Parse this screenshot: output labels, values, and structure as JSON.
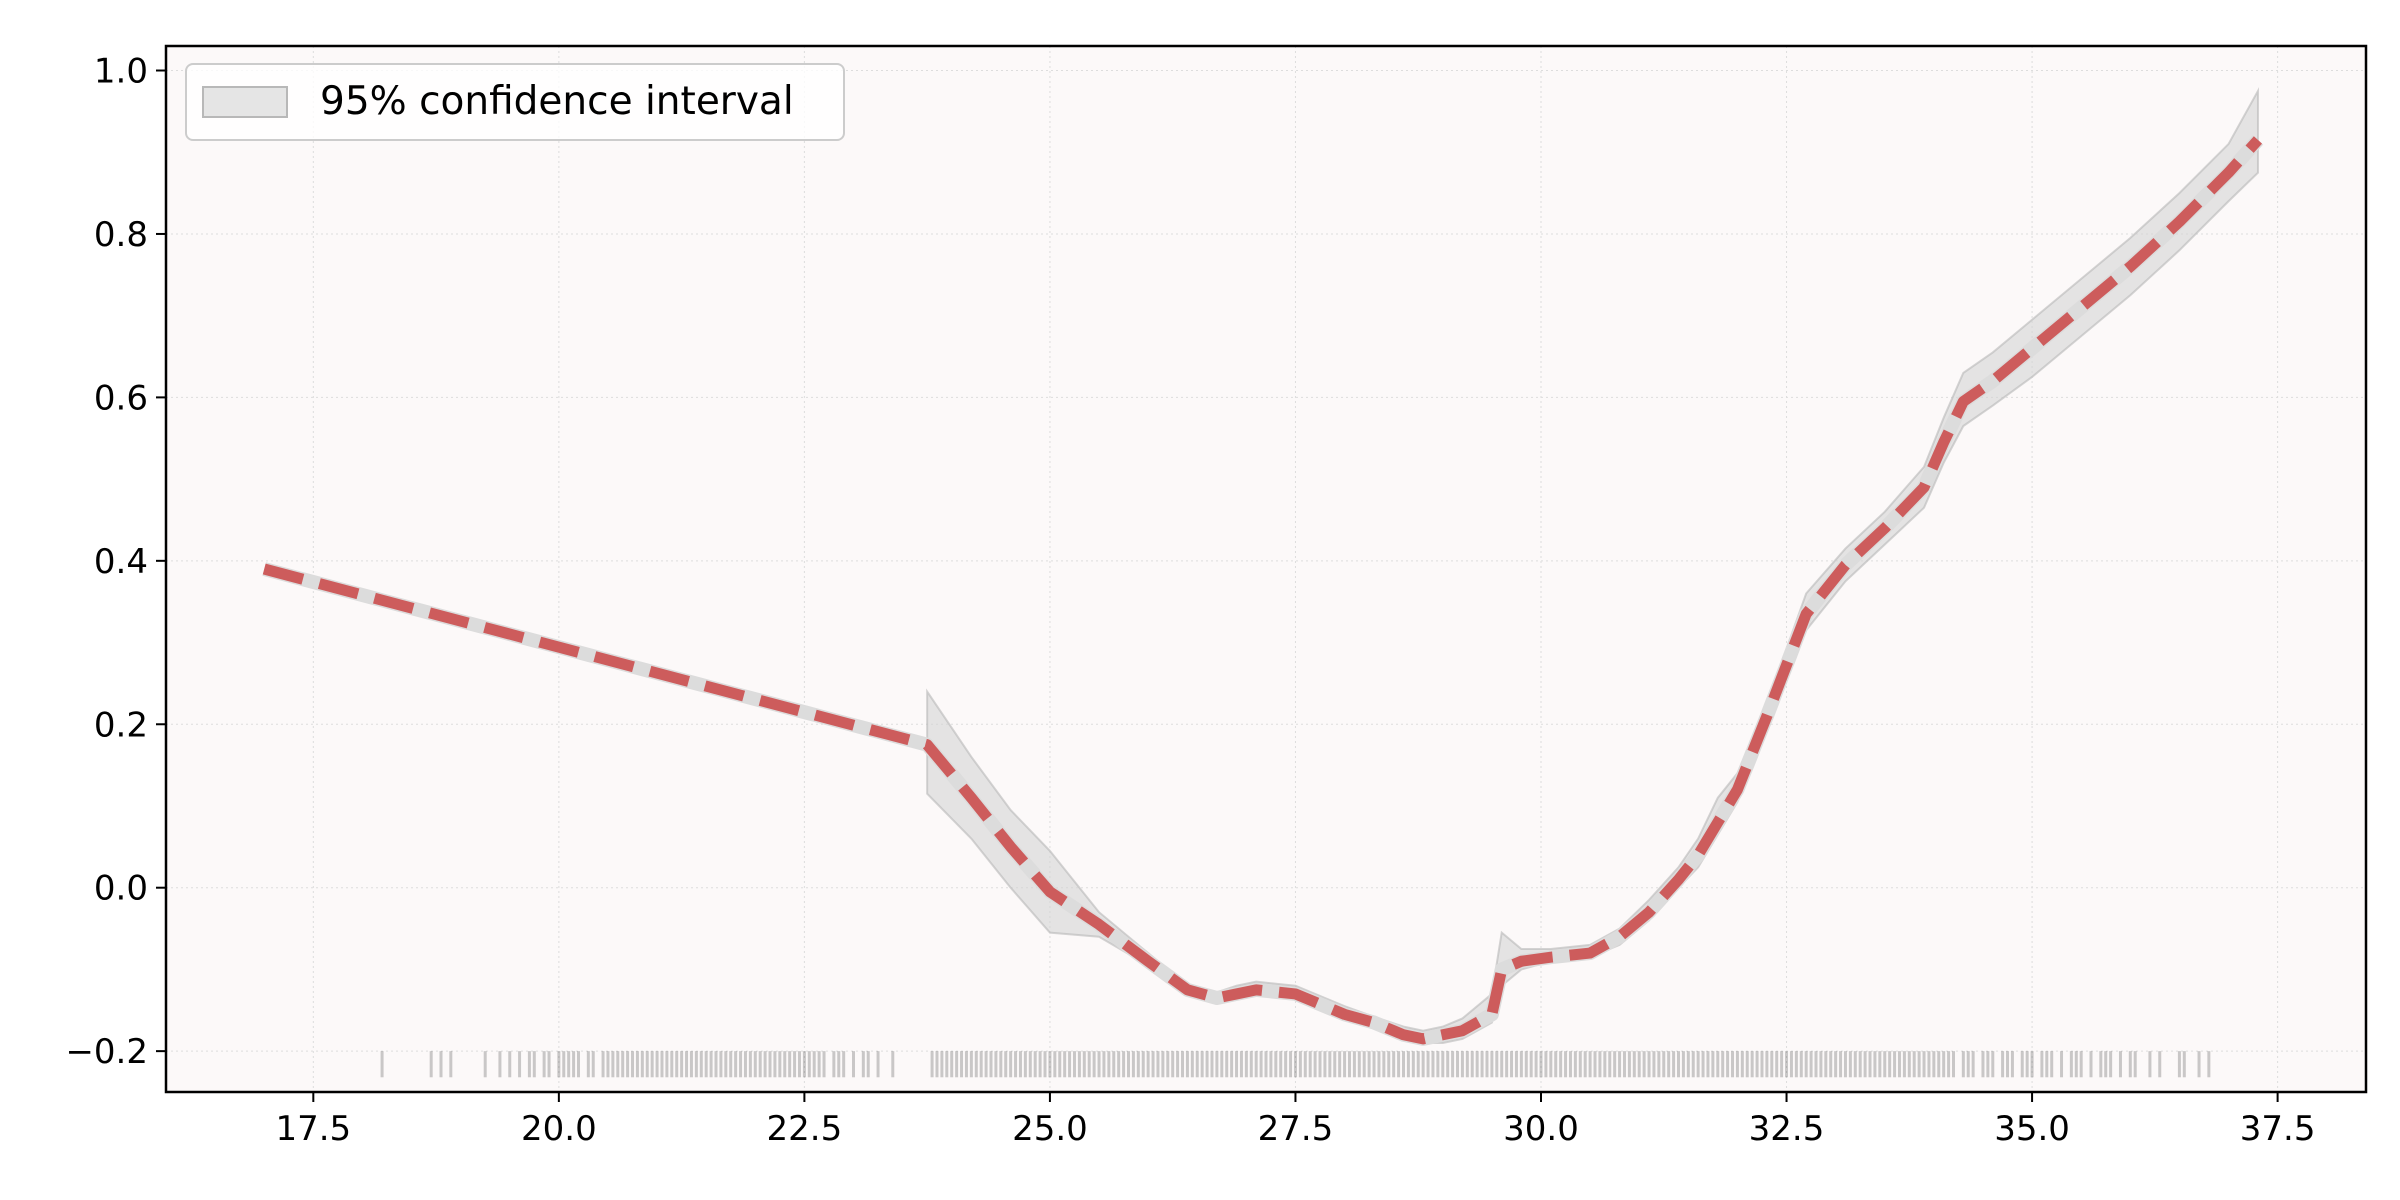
{
  "chart_data": {
    "type": "line",
    "title": "",
    "xlabel": "",
    "ylabel": "",
    "xlim": [
      16.0,
      38.4
    ],
    "ylim": [
      -0.25,
      1.03
    ],
    "x_ticks": [
      17.5,
      20.0,
      22.5,
      25.0,
      27.5,
      30.0,
      32.5,
      35.0,
      37.5
    ],
    "x_tick_labels": [
      "17.5",
      "20.0",
      "22.5",
      "25.0",
      "27.5",
      "30.0",
      "32.5",
      "35.0",
      "37.5"
    ],
    "y_ticks": [
      -0.2,
      0.0,
      0.2,
      0.4,
      0.6,
      0.8,
      1.0
    ],
    "y_tick_labels": [
      "−0.2",
      "0.0",
      "0.2",
      "0.4",
      "0.6",
      "0.8",
      "1.0"
    ],
    "grid": true,
    "legend": {
      "position": "top-left",
      "entries": [
        "95% confidence interval"
      ]
    },
    "colors": {
      "line": "#cd5c5c",
      "band": "#d3d3d3",
      "background": "#fcf9f9",
      "rug": "#000000"
    },
    "series": [
      {
        "style": "dashed",
        "x": [
          17.0,
          23.75,
          24.2,
          24.6,
          25.0,
          25.5,
          26.0,
          26.4,
          26.7,
          26.9,
          27.1,
          27.5,
          27.7,
          28.0,
          28.3,
          28.6,
          28.8,
          29.0,
          29.2,
          29.5,
          29.6,
          29.8,
          30.1,
          30.5,
          30.8,
          31.1,
          31.4,
          31.6,
          31.8,
          32.0,
          32.3,
          32.7,
          33.1,
          33.5,
          33.9,
          34.1,
          34.3,
          34.6,
          35.0,
          35.5,
          36.0,
          36.5,
          37.0,
          37.3
        ],
        "y": [
          0.39,
          0.175,
          0.11,
          0.05,
          -0.005,
          -0.045,
          -0.09,
          -0.125,
          -0.135,
          -0.13,
          -0.125,
          -0.13,
          -0.14,
          -0.155,
          -0.165,
          -0.18,
          -0.185,
          -0.18,
          -0.175,
          -0.155,
          -0.1,
          -0.09,
          -0.085,
          -0.08,
          -0.06,
          -0.03,
          0.01,
          0.04,
          0.08,
          0.12,
          0.21,
          0.335,
          0.395,
          0.44,
          0.49,
          0.545,
          0.595,
          0.62,
          0.66,
          0.71,
          0.76,
          0.815,
          0.875,
          0.915
        ]
      }
    ],
    "confidence_interval": {
      "x": [
        23.75,
        24.2,
        24.6,
        25.0,
        25.5,
        26.0,
        26.4,
        26.7,
        26.9,
        27.1,
        27.5,
        27.7,
        28.0,
        28.3,
        28.6,
        28.8,
        29.0,
        29.2,
        29.5,
        29.6,
        29.8,
        30.1,
        30.5,
        30.8,
        31.1,
        31.4,
        31.6,
        31.8,
        32.0,
        32.3,
        32.7,
        33.1,
        33.5,
        33.9,
        34.1,
        34.3,
        34.6,
        35.0,
        35.5,
        36.0,
        36.5,
        37.0,
        37.3
      ],
      "lower": [
        0.115,
        0.06,
        0.0,
        -0.055,
        -0.06,
        -0.095,
        -0.13,
        -0.14,
        -0.135,
        -0.13,
        -0.135,
        -0.145,
        -0.16,
        -0.17,
        -0.185,
        -0.19,
        -0.19,
        -0.185,
        -0.165,
        -0.12,
        -0.1,
        -0.09,
        -0.085,
        -0.07,
        -0.04,
        0.0,
        0.025,
        0.065,
        0.105,
        0.195,
        0.315,
        0.375,
        0.42,
        0.465,
        0.52,
        0.565,
        0.59,
        0.625,
        0.675,
        0.725,
        0.78,
        0.84,
        0.875
      ],
      "upper": [
        0.24,
        0.16,
        0.095,
        0.045,
        -0.03,
        -0.08,
        -0.12,
        -0.128,
        -0.12,
        -0.115,
        -0.12,
        -0.13,
        -0.145,
        -0.158,
        -0.17,
        -0.175,
        -0.17,
        -0.16,
        -0.13,
        -0.055,
        -0.075,
        -0.075,
        -0.07,
        -0.05,
        -0.015,
        0.025,
        0.06,
        0.11,
        0.14,
        0.225,
        0.36,
        0.415,
        0.46,
        0.515,
        0.575,
        0.63,
        0.655,
        0.695,
        0.745,
        0.795,
        0.85,
        0.91,
        0.975
      ]
    },
    "rug": {
      "x": [
        18.2,
        18.7,
        18.8,
        18.9,
        19.25,
        19.4,
        19.5,
        19.6,
        19.7,
        19.75,
        19.85,
        19.9,
        20.0,
        20.05,
        20.1,
        20.15,
        20.2,
        20.3,
        20.35,
        20.45,
        20.5,
        20.55,
        20.6,
        20.65,
        20.7,
        20.75,
        20.8,
        20.85,
        20.9,
        20.95,
        21.0,
        21.05,
        21.1,
        21.15,
        21.2,
        21.25,
        21.3,
        21.35,
        21.4,
        21.45,
        21.5,
        21.55,
        21.6,
        21.65,
        21.7,
        21.75,
        21.8,
        21.85,
        21.9,
        21.95,
        22.0,
        22.05,
        22.1,
        22.15,
        22.2,
        22.25,
        22.3,
        22.35,
        22.4,
        22.45,
        22.5,
        22.55,
        22.6,
        22.65,
        22.7,
        22.8,
        22.85,
        22.9,
        23.0,
        23.1,
        23.15,
        23.25,
        23.4,
        23.8,
        23.85,
        23.9,
        23.95,
        24.0,
        24.05,
        24.1,
        24.15,
        24.2,
        24.25,
        24.3,
        24.35,
        24.4,
        24.45,
        24.5,
        24.55,
        24.6,
        24.65,
        24.7,
        24.75,
        24.8,
        24.85,
        24.9,
        24.95,
        25.0,
        25.05,
        25.1,
        25.15,
        25.2,
        25.25,
        25.3,
        25.35,
        25.4,
        25.45,
        25.5,
        25.55,
        25.6,
        25.65,
        25.7,
        25.75,
        25.8,
        25.85,
        25.9,
        25.95,
        26.0,
        26.05,
        26.1,
        26.15,
        26.2,
        26.25,
        26.3,
        26.35,
        26.4,
        26.45,
        26.5,
        26.55,
        26.6,
        26.65,
        26.7,
        26.75,
        26.8,
        26.85,
        26.9,
        26.95,
        27.0,
        27.05,
        27.1,
        27.15,
        27.2,
        27.25,
        27.3,
        27.35,
        27.4,
        27.45,
        27.5,
        27.55,
        27.6,
        27.65,
        27.7,
        27.75,
        27.8,
        27.85,
        27.9,
        27.95,
        28.0,
        28.05,
        28.1,
        28.15,
        28.2,
        28.25,
        28.3,
        28.35,
        28.4,
        28.45,
        28.5,
        28.55,
        28.6,
        28.65,
        28.7,
        28.75,
        28.8,
        28.85,
        28.9,
        28.95,
        29.0,
        29.05,
        29.1,
        29.15,
        29.2,
        29.25,
        29.3,
        29.35,
        29.4,
        29.45,
        29.5,
        29.55,
        29.6,
        29.65,
        29.7,
        29.75,
        29.8,
        29.85,
        29.9,
        29.95,
        30.0,
        30.05,
        30.1,
        30.15,
        30.2,
        30.25,
        30.3,
        30.35,
        30.4,
        30.45,
        30.5,
        30.55,
        30.6,
        30.65,
        30.7,
        30.75,
        30.8,
        30.85,
        30.9,
        30.95,
        31.0,
        31.05,
        31.1,
        31.15,
        31.2,
        31.25,
        31.3,
        31.35,
        31.4,
        31.45,
        31.5,
        31.55,
        31.6,
        31.65,
        31.7,
        31.75,
        31.8,
        31.85,
        31.9,
        31.95,
        32.0,
        32.05,
        32.1,
        32.15,
        32.2,
        32.25,
        32.3,
        32.35,
        32.4,
        32.45,
        32.5,
        32.55,
        32.6,
        32.65,
        32.7,
        32.75,
        32.8,
        32.85,
        32.9,
        32.95,
        33.0,
        33.05,
        33.1,
        33.15,
        33.2,
        33.25,
        33.3,
        33.35,
        33.4,
        33.45,
        33.5,
        33.55,
        33.6,
        33.65,
        33.7,
        33.75,
        33.8,
        33.85,
        33.9,
        33.95,
        34.0,
        34.05,
        34.1,
        34.15,
        34.2,
        34.3,
        34.35,
        34.4,
        34.5,
        34.55,
        34.6,
        34.7,
        34.75,
        34.8,
        34.9,
        34.95,
        35.0,
        35.1,
        35.15,
        35.2,
        35.3,
        35.4,
        35.45,
        35.5,
        35.6,
        35.7,
        35.75,
        35.8,
        35.9,
        36.0,
        36.05,
        36.2,
        36.3,
        36.5,
        36.55,
        36.7,
        36.8
      ]
    }
  }
}
